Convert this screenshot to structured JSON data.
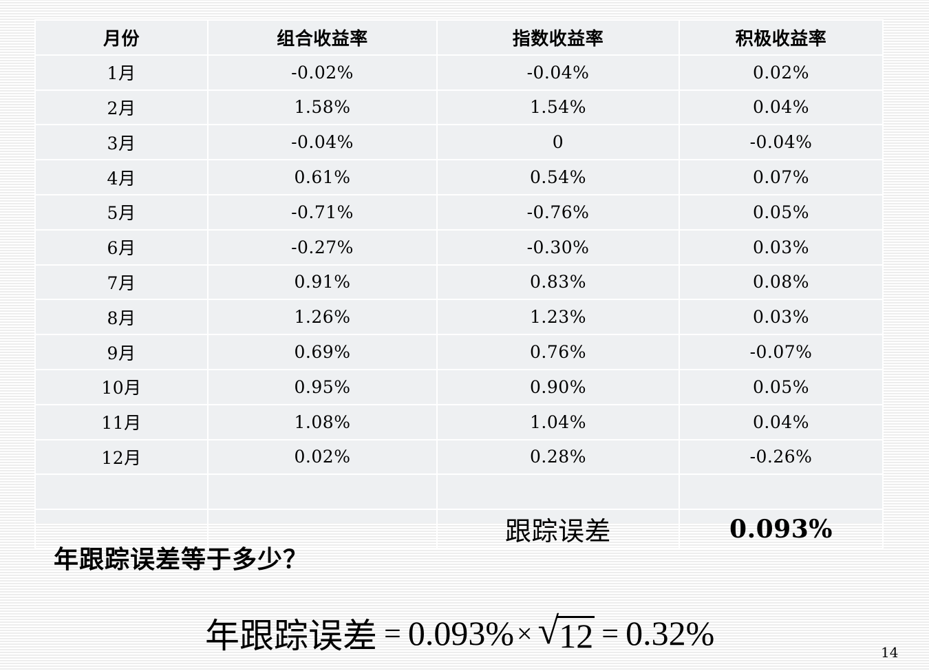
{
  "table": {
    "headers": [
      "月份",
      "组合收益率",
      "指数收益率",
      "积极收益率"
    ],
    "rows": [
      [
        "1月",
        "-0.02%",
        "-0.04%",
        "0.02%"
      ],
      [
        "2月",
        "1.58%",
        "1.54%",
        "0.04%"
      ],
      [
        "3月",
        "-0.04%",
        "0",
        "-0.04%"
      ],
      [
        "4月",
        "0.61%",
        "0.54%",
        "0.07%"
      ],
      [
        "5月",
        "-0.71%",
        "-0.76%",
        "0.05%"
      ],
      [
        "6月",
        "-0.27%",
        "-0.30%",
        "0.03%"
      ],
      [
        "7月",
        "0.91%",
        "0.83%",
        "0.08%"
      ],
      [
        "8月",
        "1.26%",
        "1.23%",
        "0.03%"
      ],
      [
        "9月",
        "0.69%",
        "0.76%",
        "-0.07%"
      ],
      [
        "10月",
        "0.95%",
        "0.90%",
        "0.05%"
      ],
      [
        "11月",
        "1.08%",
        "1.04%",
        "0.04%"
      ],
      [
        "12月",
        "0.02%",
        "0.28%",
        "-0.26%"
      ]
    ],
    "tracking_error_label": "跟踪误差",
    "tracking_error_value": "0.093%"
  },
  "question": "年跟踪误差等于多少？",
  "formula": {
    "lhs": "年跟踪误差",
    "equals": "=",
    "monthly": "0.093%",
    "times": "×",
    "radicand": "12",
    "result": "0.32%"
  },
  "page_number": "14"
}
